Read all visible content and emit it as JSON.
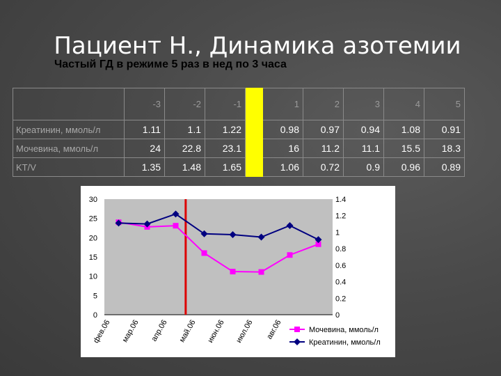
{
  "title": "Пациент Н., Динамика азотемии",
  "subtitle": "Частый ГД в режиме 5 раз в нед по 3 часа",
  "table": {
    "headers": [
      "-3",
      "-2",
      "-1",
      "",
      "1",
      "2",
      "3",
      "4",
      "5"
    ],
    "rows": [
      {
        "label": "Креатинин, ммоль/л",
        "values": [
          "1.11",
          "1.1",
          "1.22",
          "",
          "0.98",
          "0.97",
          "0.94",
          "1.08",
          "0.91"
        ]
      },
      {
        "label": "Мочевина, ммоль/л",
        "values": [
          "24",
          "22.8",
          "23.1",
          "",
          "16",
          "11.2",
          "11.1",
          "15.5",
          "18.3"
        ]
      },
      {
        "label": "KT/V",
        "values": [
          "1.35",
          "1.48",
          "1.65",
          "",
          "1.06",
          "0.72",
          "0.9",
          "0.96",
          "0.89"
        ]
      }
    ],
    "highlight_color": "#ffff00"
  },
  "chart_data": {
    "type": "line",
    "categories": [
      "фев.06",
      "мар.06",
      "апр.06",
      "май.06",
      "июн.06",
      "июл.06",
      "авг.06"
    ],
    "x_positions": [
      0,
      1,
      2,
      3,
      4,
      5,
      6,
      7,
      8
    ],
    "left_axis": {
      "ylim": [
        0,
        30
      ],
      "ticks": [
        "0",
        "5",
        "10",
        "15",
        "20",
        "25",
        "30"
      ]
    },
    "right_axis": {
      "ylim": [
        0,
        1.4
      ],
      "ticks": [
        "0",
        "0.2",
        "0.4",
        "0.6",
        "0.8",
        "1",
        "1.2",
        "1.4"
      ]
    },
    "series": [
      {
        "name": "Мочевина, ммоль/л",
        "axis": "left",
        "color": "#ff00ff",
        "marker": "square",
        "x": [
          0,
          1,
          2,
          3,
          4,
          5,
          6,
          7
        ],
        "values": [
          24,
          22.8,
          23.1,
          16,
          11.2,
          11.1,
          15.5,
          18.3
        ]
      },
      {
        "name": "Креатинин, ммоль/л",
        "axis": "right",
        "color": "#000080",
        "marker": "diamond",
        "x": [
          0,
          1,
          2,
          3,
          4,
          5,
          6,
          7
        ],
        "values": [
          1.11,
          1.1,
          1.22,
          0.98,
          0.97,
          0.94,
          1.08,
          0.91
        ]
      }
    ],
    "marker_line": {
      "x": 2.35,
      "color": "#dd0000"
    },
    "plot_background": "#c0c0c0",
    "legend_position": "bottom-right"
  }
}
